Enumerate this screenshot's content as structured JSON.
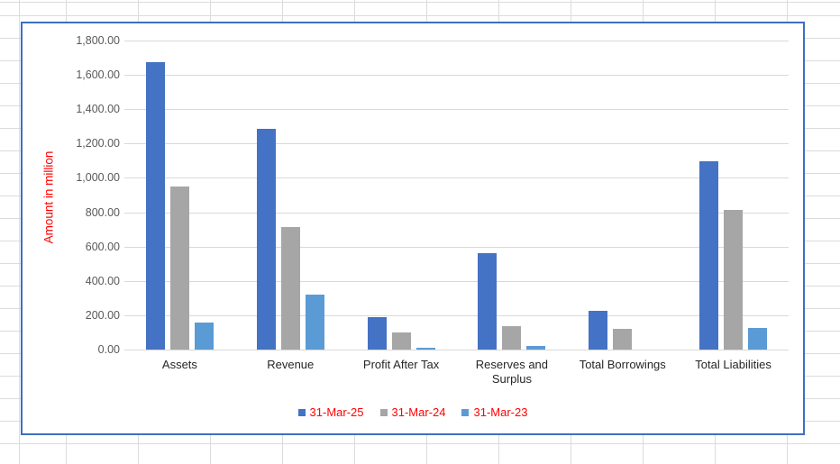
{
  "chart_data": {
    "type": "bar",
    "title": "",
    "categories": [
      "Assets",
      "Revenue",
      "Profit After Tax",
      "Reserves and Surplus",
      "Total Borrowings",
      "Total Liabilities"
    ],
    "series": [
      {
        "name": "31-Mar-25",
        "color": "#4472C4",
        "values": [
          1675,
          1285,
          190,
          560,
          225,
          1095
        ]
      },
      {
        "name": "31-Mar-24",
        "color": "#A6A6A6",
        "values": [
          950,
          715,
          100,
          135,
          120,
          815
        ]
      },
      {
        "name": "31-Mar-23",
        "color": "#5B9BD5",
        "values": [
          155,
          320,
          12,
          22,
          0,
          125
        ]
      }
    ],
    "xlabel": "",
    "ylabel": "Amount in million",
    "ylim": [
      0,
      1800
    ],
    "ytick_step": 200,
    "yticks": [
      "1,800.00",
      "1,600.00",
      "1,400.00",
      "1,200.00",
      "1,000.00",
      "800.00",
      "600.00",
      "400.00",
      "200.00",
      "0.00"
    ],
    "grid": true,
    "legend_position": "bottom"
  },
  "styles": {
    "axis_title_color": "#FF0000",
    "legend_text_color": "#FF0000",
    "tick_label_color": "#595959",
    "category_label_color": "#262626",
    "chart_gridline_color": "#D9D9D9",
    "chart_border_color": "#3F6FBF",
    "sheet_gridline_color": "#DCDCDC"
  }
}
